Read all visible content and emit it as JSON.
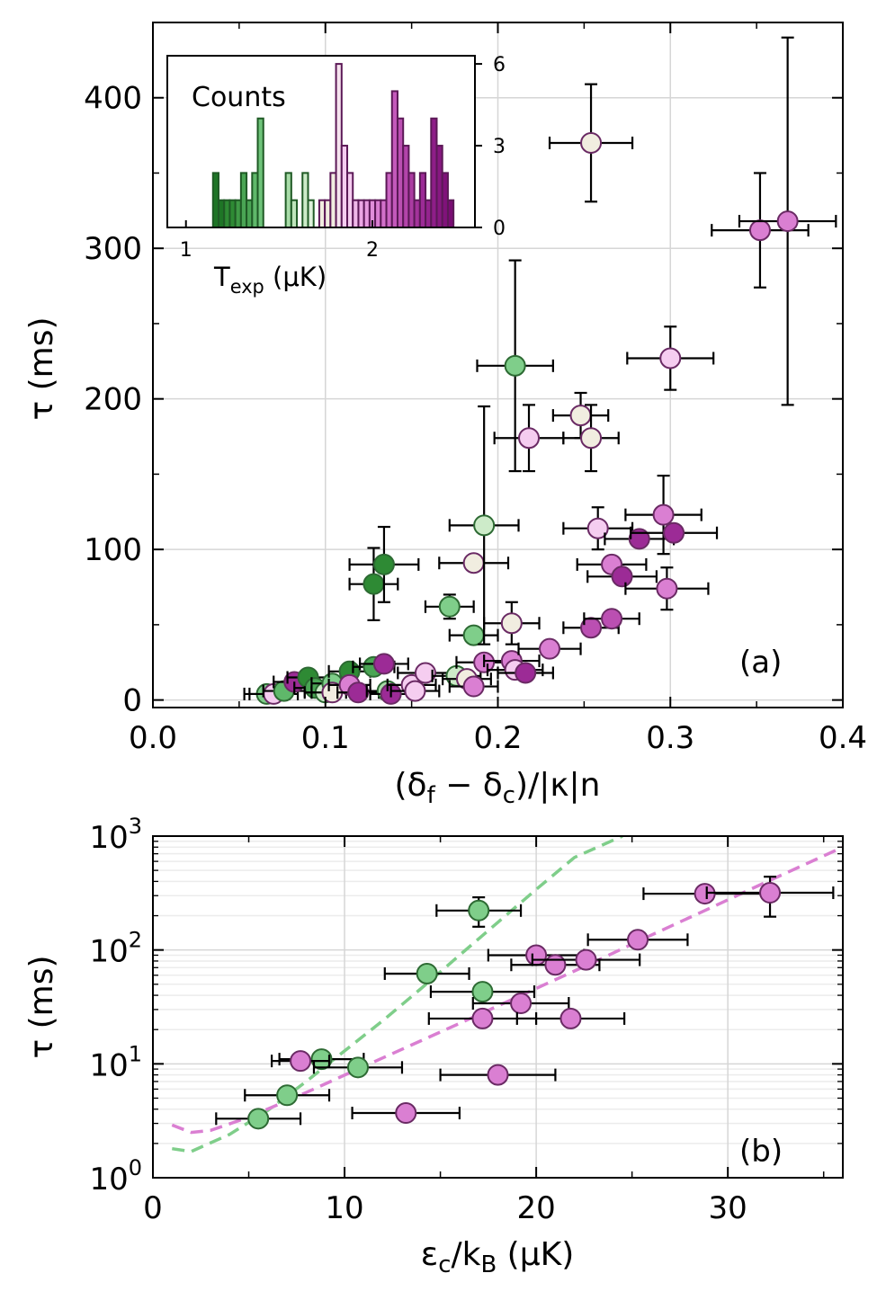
{
  "chart_data": [
    {
      "panel": "a",
      "type": "scatter",
      "panel_label": "(a)",
      "xlabel": "(δ_f − δ_c)/|κ|n",
      "ylabel": "τ (ms)",
      "xlim": [
        0.0,
        0.4
      ],
      "ylim": [
        -5,
        450
      ],
      "xticks": [
        0.0,
        0.1,
        0.2,
        0.3,
        0.4
      ],
      "xtick_labels": [
        "0.0",
        "0.1",
        "0.2",
        "0.3",
        "0.4"
      ],
      "yticks": [
        0,
        100,
        200,
        300,
        400
      ],
      "ytick_labels": [
        "0",
        "100",
        "200",
        "300",
        "400"
      ],
      "grid": true,
      "color_scale": "temperature (green = cold → purple = hot)",
      "points": [
        {
          "x": 0.066,
          "y": 4,
          "xerr": 0.013,
          "yerr": 0,
          "color": "#7fce8a"
        },
        {
          "x": 0.07,
          "y": 4,
          "xerr": 0.014,
          "yerr": 0,
          "color": "#f5cdf0"
        },
        {
          "x": 0.076,
          "y": 6,
          "xerr": 0.012,
          "yerr": 0,
          "color": "#5fb86a"
        },
        {
          "x": 0.082,
          "y": 12,
          "xerr": 0.012,
          "yerr": 0,
          "color": "#9c2b96"
        },
        {
          "x": 0.09,
          "y": 15,
          "xerr": 0.012,
          "yerr": 0,
          "color": "#2e8a34"
        },
        {
          "x": 0.094,
          "y": 8,
          "xerr": 0.012,
          "yerr": 0,
          "color": "#4aa554"
        },
        {
          "x": 0.1,
          "y": 5,
          "xerr": 0.012,
          "yerr": 0,
          "color": "#cdebc9"
        },
        {
          "x": 0.104,
          "y": 11,
          "xerr": 0.012,
          "yerr": 0,
          "color": "#7fce8a"
        },
        {
          "x": 0.104,
          "y": 5,
          "xerr": 0.012,
          "yerr": 0,
          "color": "#f1ede0"
        },
        {
          "x": 0.114,
          "y": 19,
          "xerr": 0.012,
          "yerr": 0,
          "color": "#2e8a34"
        },
        {
          "x": 0.114,
          "y": 10,
          "xerr": 0.012,
          "yerr": 0,
          "color": "#da7fd2"
        },
        {
          "x": 0.119,
          "y": 5,
          "xerr": 0.012,
          "yerr": 0,
          "color": "#9c2b96"
        },
        {
          "x": 0.128,
          "y": 22,
          "xerr": 0.012,
          "yerr": 0,
          "color": "#4aa554"
        },
        {
          "x": 0.128,
          "y": 77,
          "xerr": 0.014,
          "yerr": 24,
          "color": "#2e8a34"
        },
        {
          "x": 0.134,
          "y": 90,
          "xerr": 0.02,
          "yerr": 25,
          "color": "#2e8a34"
        },
        {
          "x": 0.134,
          "y": 24,
          "xerr": 0.014,
          "yerr": 0,
          "color": "#9c2b96"
        },
        {
          "x": 0.136,
          "y": 6,
          "xerr": 0.012,
          "yerr": 0,
          "color": "#a8dca8"
        },
        {
          "x": 0.138,
          "y": 4,
          "xerr": 0.012,
          "yerr": 0,
          "color": "#9c2b96"
        },
        {
          "x": 0.15,
          "y": 10,
          "xerr": 0.014,
          "yerr": 0,
          "color": "#f5cdf0"
        },
        {
          "x": 0.152,
          "y": 6,
          "xerr": 0.014,
          "yerr": 0,
          "color": "#f5cdf0"
        },
        {
          "x": 0.158,
          "y": 18,
          "xerr": 0.016,
          "yerr": 0,
          "color": "#f5cdf0"
        },
        {
          "x": 0.172,
          "y": 62,
          "xerr": 0.014,
          "yerr": 8,
          "color": "#7fce8a"
        },
        {
          "x": 0.176,
          "y": 16,
          "xerr": 0.014,
          "yerr": 0,
          "color": "#cdebc9"
        },
        {
          "x": 0.182,
          "y": 14,
          "xerr": 0.014,
          "yerr": 0,
          "color": "#f1ede0"
        },
        {
          "x": 0.186,
          "y": 43,
          "xerr": 0.014,
          "yerr": 0,
          "color": "#7fce8a"
        },
        {
          "x": 0.186,
          "y": 91,
          "xerr": 0.02,
          "yerr": 0,
          "color": "#f1ede0"
        },
        {
          "x": 0.186,
          "y": 9,
          "xerr": 0.014,
          "yerr": 0,
          "color": "#da7fd2"
        },
        {
          "x": 0.192,
          "y": 116,
          "xerr": 0.02,
          "yerr": 79,
          "color": "#cdebc9"
        },
        {
          "x": 0.192,
          "y": 25,
          "xerr": 0.016,
          "yerr": 0,
          "color": "#da7fd2"
        },
        {
          "x": 0.208,
          "y": 51,
          "xerr": 0.016,
          "yerr": 14,
          "color": "#f1ede0"
        },
        {
          "x": 0.208,
          "y": 26,
          "xerr": 0.016,
          "yerr": 0,
          "color": "#da7fd2"
        },
        {
          "x": 0.21,
          "y": 222,
          "xerr": 0.022,
          "yerr": 70,
          "color": "#7fce8a"
        },
        {
          "x": 0.21,
          "y": 20,
          "xerr": 0.016,
          "yerr": 0,
          "color": "#f5cdf0"
        },
        {
          "x": 0.216,
          "y": 18,
          "xerr": 0.016,
          "yerr": 0,
          "color": "#9c2b96"
        },
        {
          "x": 0.218,
          "y": 174,
          "xerr": 0.02,
          "yerr": 22,
          "color": "#f5cdf0"
        },
        {
          "x": 0.23,
          "y": 34,
          "xerr": 0.018,
          "yerr": 0,
          "color": "#da7fd2"
        },
        {
          "x": 0.248,
          "y": 189,
          "xerr": 0.016,
          "yerr": 15,
          "color": "#f1ede0"
        },
        {
          "x": 0.254,
          "y": 370,
          "xerr": 0.024,
          "yerr": 39,
          "color": "#f1ede0"
        },
        {
          "x": 0.254,
          "y": 174,
          "xerr": 0.016,
          "yerr": 22,
          "color": "#f1ede0"
        },
        {
          "x": 0.254,
          "y": 48,
          "xerr": 0.016,
          "yerr": 0,
          "color": "#bb4fb2"
        },
        {
          "x": 0.258,
          "y": 114,
          "xerr": 0.02,
          "yerr": 14,
          "color": "#f5cdf0"
        },
        {
          "x": 0.266,
          "y": 54,
          "xerr": 0.016,
          "yerr": 0,
          "color": "#bb4fb2"
        },
        {
          "x": 0.266,
          "y": 90,
          "xerr": 0.02,
          "yerr": 0,
          "color": "#da7fd2"
        },
        {
          "x": 0.272,
          "y": 82,
          "xerr": 0.02,
          "yerr": 0,
          "color": "#9c2b96"
        },
        {
          "x": 0.282,
          "y": 107,
          "xerr": 0.02,
          "yerr": 0,
          "color": "#9c2b96"
        },
        {
          "x": 0.296,
          "y": 123,
          "xerr": 0.022,
          "yerr": 26,
          "color": "#da7fd2"
        },
        {
          "x": 0.298,
          "y": 74,
          "xerr": 0.024,
          "yerr": 14,
          "color": "#da7fd2"
        },
        {
          "x": 0.3,
          "y": 227,
          "xerr": 0.025,
          "yerr": 21,
          "color": "#f5cdf0"
        },
        {
          "x": 0.302,
          "y": 111,
          "xerr": 0.025,
          "yerr": 0,
          "color": "#9c2b96"
        },
        {
          "x": 0.352,
          "y": 312,
          "xerr": 0.028,
          "yerr": 38,
          "color": "#da7fd2"
        },
        {
          "x": 0.368,
          "y": 318,
          "xerr": 0.028,
          "yerr": 122,
          "color": "#da7fd2"
        }
      ],
      "inset": {
        "type": "bar",
        "title": "Counts",
        "xlabel": "T_exp (μK)",
        "xticks": [
          1,
          2
        ],
        "xtick_labels": [
          "1",
          "2"
        ],
        "yticks": [
          0,
          3,
          6
        ],
        "ytick_labels": [
          "0",
          "3",
          "6"
        ],
        "xlim": [
          0.9,
          2.55
        ],
        "ylim": [
          0,
          6.3
        ],
        "bin_width": 0.03,
        "bars": [
          {
            "x": 1.16,
            "count": 2,
            "color": "#1e7526"
          },
          {
            "x": 1.19,
            "count": 1,
            "color": "#1e7526"
          },
          {
            "x": 1.22,
            "count": 1,
            "color": "#2e8a34"
          },
          {
            "x": 1.25,
            "count": 1,
            "color": "#2e8a34"
          },
          {
            "x": 1.28,
            "count": 1,
            "color": "#3f9a46"
          },
          {
            "x": 1.31,
            "count": 2,
            "color": "#4aa554"
          },
          {
            "x": 1.34,
            "count": 1,
            "color": "#4aa554"
          },
          {
            "x": 1.37,
            "count": 2,
            "color": "#5fb86a"
          },
          {
            "x": 1.4,
            "count": 4,
            "color": "#6fc37a"
          },
          {
            "x": 1.46,
            "count": 0,
            "color": "#7fce8a"
          },
          {
            "x": 1.52,
            "count": 0,
            "color": "#a8dca8"
          },
          {
            "x": 1.55,
            "count": 2,
            "color": "#a8dca8"
          },
          {
            "x": 1.58,
            "count": 1,
            "color": "#bfe5bc"
          },
          {
            "x": 1.64,
            "count": 2,
            "color": "#cdebc9"
          },
          {
            "x": 1.67,
            "count": 1,
            "color": "#dff2dc"
          },
          {
            "x": 1.73,
            "count": 1,
            "color": "#f1ede0"
          },
          {
            "x": 1.76,
            "count": 1,
            "color": "#f1ede0"
          },
          {
            "x": 1.79,
            "count": 2,
            "color": "#f1ede0"
          },
          {
            "x": 1.82,
            "count": 6,
            "color": "#f6e4ef"
          },
          {
            "x": 1.85,
            "count": 3,
            "color": "#f5cdf0"
          },
          {
            "x": 1.88,
            "count": 2,
            "color": "#f5cdf0"
          },
          {
            "x": 1.91,
            "count": 1,
            "color": "#f0b8e9"
          },
          {
            "x": 1.94,
            "count": 1,
            "color": "#eca6e4"
          },
          {
            "x": 1.97,
            "count": 1,
            "color": "#e79adf"
          },
          {
            "x": 2.0,
            "count": 1,
            "color": "#e08dd9"
          },
          {
            "x": 2.03,
            "count": 1,
            "color": "#da7fd2"
          },
          {
            "x": 2.06,
            "count": 1,
            "color": "#d271ca"
          },
          {
            "x": 2.09,
            "count": 2,
            "color": "#ca64c2"
          },
          {
            "x": 2.12,
            "count": 5,
            "color": "#c459bb"
          },
          {
            "x": 2.15,
            "count": 4,
            "color": "#bb4fb2"
          },
          {
            "x": 2.18,
            "count": 3,
            "color": "#b344aa"
          },
          {
            "x": 2.21,
            "count": 2,
            "color": "#ab3ca2"
          },
          {
            "x": 2.24,
            "count": 1,
            "color": "#a3339a"
          },
          {
            "x": 2.27,
            "count": 2,
            "color": "#9c2b96"
          },
          {
            "x": 2.3,
            "count": 1,
            "color": "#95248f"
          },
          {
            "x": 2.33,
            "count": 4,
            "color": "#8e1e88"
          },
          {
            "x": 2.36,
            "count": 3,
            "color": "#871881"
          },
          {
            "x": 2.39,
            "count": 2,
            "color": "#80127a"
          },
          {
            "x": 2.42,
            "count": 1,
            "color": "#790c73"
          }
        ]
      }
    },
    {
      "panel": "b",
      "type": "scatter",
      "panel_label": "(b)",
      "xlabel": "ε_c/k_B (μK)",
      "ylabel": "τ (ms)",
      "xlim": [
        0,
        36
      ],
      "ylim_log10": [
        0,
        3
      ],
      "yscale": "log",
      "xticks": [
        0,
        10,
        20,
        30
      ],
      "xtick_labels": [
        "0",
        "10",
        "20",
        "30"
      ],
      "yticks": [
        1,
        10,
        100,
        1000
      ],
      "ytick_labels": [
        {
          "base": "10",
          "exp": "0"
        },
        {
          "base": "10",
          "exp": "1"
        },
        {
          "base": "10",
          "exp": "2"
        },
        {
          "base": "10",
          "exp": "3"
        }
      ],
      "grid": true,
      "series": [
        {
          "name": "green",
          "color": "#7fce8a",
          "points": [
            {
              "x": 5.5,
              "y": 3.3,
              "xerr": 2.2
            },
            {
              "x": 7.0,
              "y": 5.3,
              "xerr": 2.2
            },
            {
              "x": 8.8,
              "y": 11.0,
              "xerr": 2.2
            },
            {
              "x": 10.7,
              "y": 9.3,
              "xerr": 2.3
            },
            {
              "x": 14.3,
              "y": 62,
              "xerr": 2.2
            },
            {
              "x": 17.2,
              "y": 43,
              "xerr": 2.7
            },
            {
              "x": 17.0,
              "y": 222,
              "xerr": 2.2,
              "ylo": 160,
              "yhi": 290
            }
          ],
          "fit_curve": {
            "style": "dashed",
            "x": [
              1,
              2,
              4,
              6,
              8,
              10,
              12,
              14,
              16,
              18,
              20,
              22,
              24.5
            ],
            "y": [
              1.8,
              1.7,
              2.4,
              3.9,
              7.0,
              13,
              24,
              46,
              90,
              175,
              340,
              650,
              1000
            ]
          }
        },
        {
          "name": "purple",
          "color": "#da7fd2",
          "points": [
            {
              "x": 7.7,
              "y": 10.6,
              "xerr": 1.5
            },
            {
              "x": 13.2,
              "y": 3.7,
              "xerr": 2.8
            },
            {
              "x": 18.0,
              "y": 8.0,
              "xerr": 3.0
            },
            {
              "x": 17.2,
              "y": 25,
              "xerr": 2.8
            },
            {
              "x": 19.2,
              "y": 34,
              "xerr": 2.5
            },
            {
              "x": 21.8,
              "y": 25,
              "xerr": 2.8
            },
            {
              "x": 20.0,
              "y": 90,
              "xerr": 2.5
            },
            {
              "x": 21.0,
              "y": 74,
              "xerr": 2.3
            },
            {
              "x": 22.6,
              "y": 82,
              "xerr": 2.8
            },
            {
              "x": 25.3,
              "y": 123,
              "xerr": 2.6
            },
            {
              "x": 28.8,
              "y": 312,
              "xerr": 3.2
            },
            {
              "x": 32.2,
              "y": 318,
              "xerr": 3.3,
              "ylo": 196,
              "yhi": 440
            }
          ],
          "fit_curve": {
            "style": "dashed",
            "x": [
              1,
              2,
              3,
              5,
              8,
              11,
              14,
              17,
              20,
              23,
              26,
              29,
              32,
              36
            ],
            "y": [
              2.9,
              2.5,
              2.6,
              3.4,
              5.6,
              9.5,
              16,
              27,
              46,
              78,
              135,
              230,
              395,
              800
            ]
          }
        }
      ]
    }
  ]
}
